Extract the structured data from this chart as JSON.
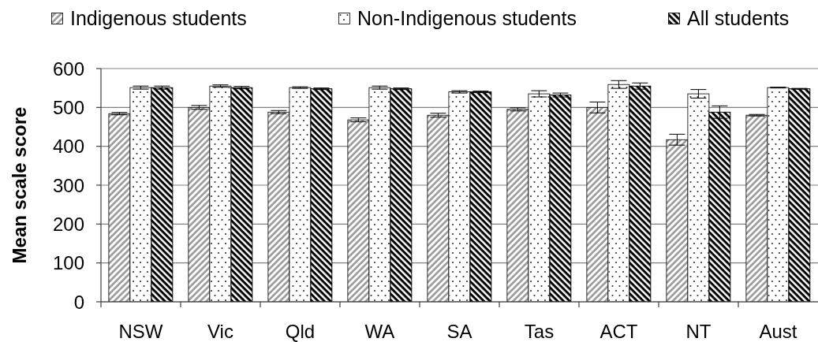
{
  "chart_data": {
    "type": "bar",
    "ylabel": "Mean scale score",
    "categories": [
      "NSW",
      "Vic",
      "Qld",
      "WA",
      "SA",
      "Tas",
      "ACT",
      "NT",
      "Aust"
    ],
    "series": [
      {
        "name": "Indigenous students",
        "color": "#999999",
        "values": [
          484,
          500,
          488,
          468,
          480,
          495,
          500,
          417,
          480
        ],
        "errors": [
          3,
          5,
          4,
          5,
          5,
          4,
          14,
          14,
          2
        ]
      },
      {
        "name": "Non-Indigenous students",
        "color": "#ffffff",
        "values": [
          551,
          555,
          551,
          551,
          540,
          535,
          559,
          535,
          551
        ],
        "errors": [
          4,
          3,
          2,
          4,
          3,
          8,
          10,
          11,
          1
        ]
      },
      {
        "name": "All students",
        "color": "#000000",
        "values": [
          551,
          551,
          548,
          548,
          540,
          532,
          555,
          488,
          548
        ],
        "errors": [
          4,
          3,
          2,
          2,
          2,
          5,
          8,
          16,
          1
        ]
      }
    ],
    "ylim": [
      0,
      600
    ],
    "yticks": [
      0,
      100,
      200,
      300,
      400,
      500,
      600
    ],
    "grid": "y",
    "legend": "top"
  }
}
